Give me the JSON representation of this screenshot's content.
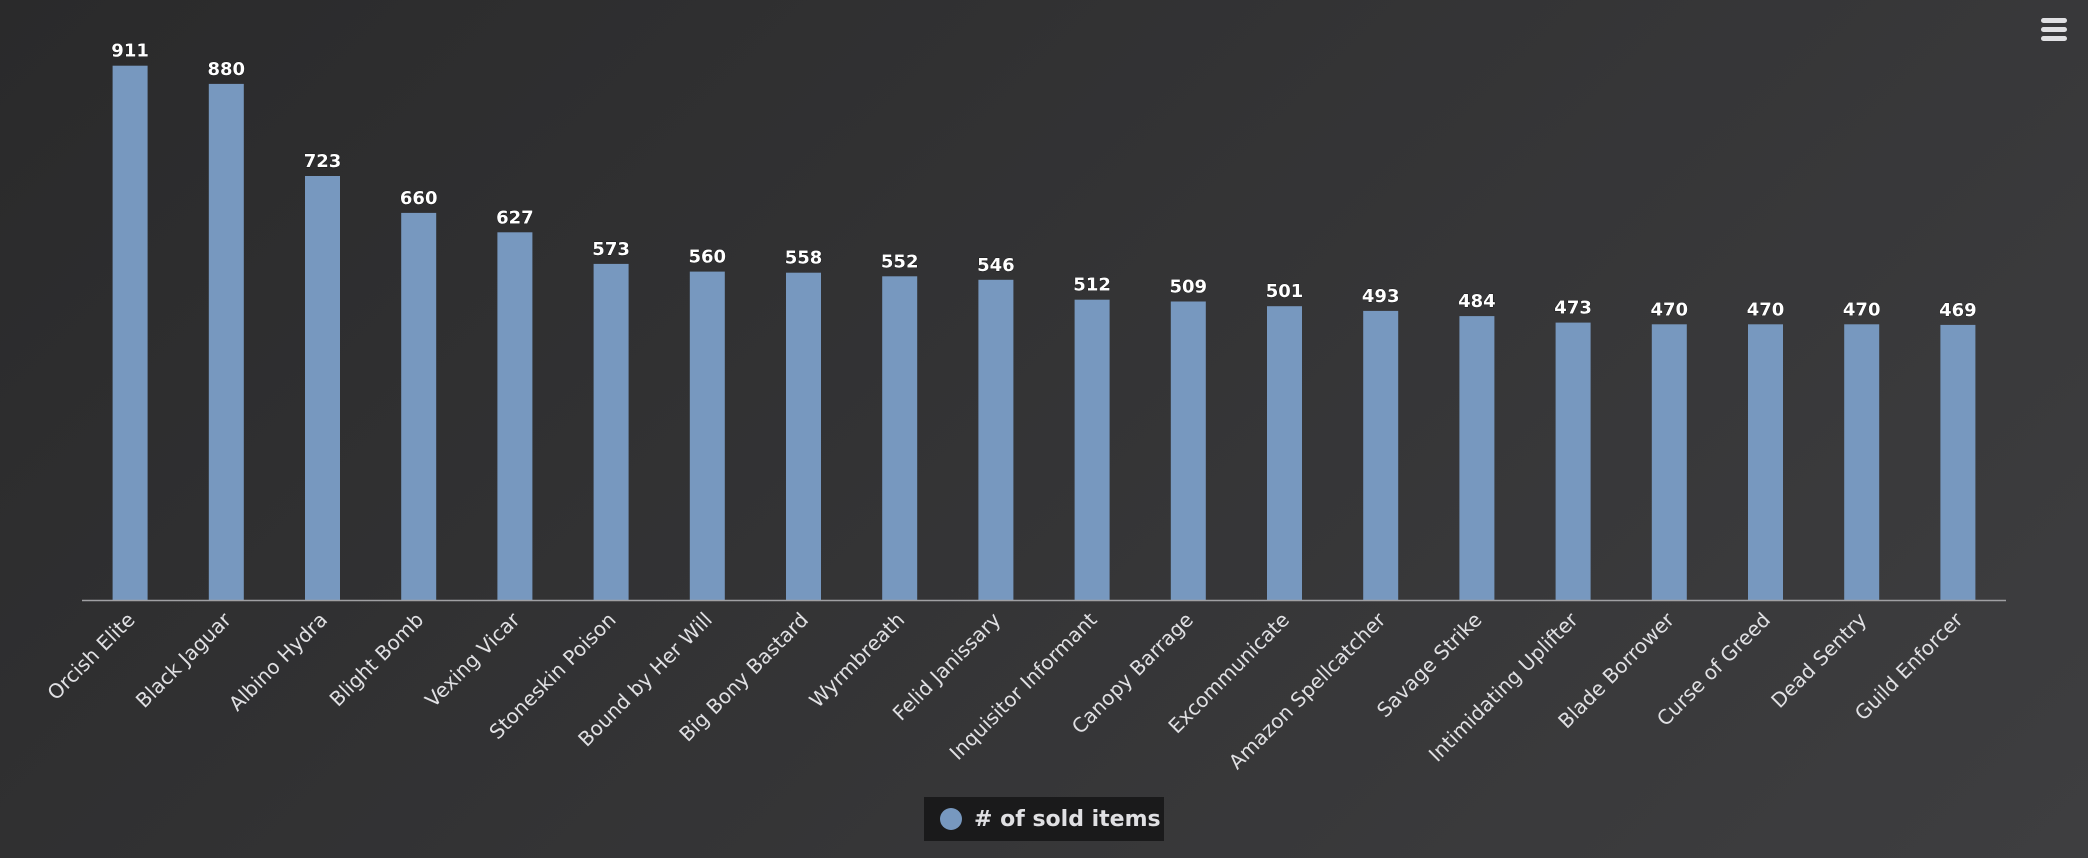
{
  "chart_data": {
    "type": "bar",
    "title": "",
    "xlabel": "",
    "ylabel": "",
    "ylim": [
      0,
      1000
    ],
    "grid": false,
    "legend_position": "bottom-center",
    "categories": [
      "Orcish Elite",
      "Black Jaguar",
      "Albino Hydra",
      "Blight Bomb",
      "Vexing Vicar",
      "Stoneskin Poison",
      "Bound by Her Will",
      "Big Bony Bastard",
      "Wyrmbreath",
      "Felid Janissary",
      "Inquisitor Informant",
      "Canopy Barrage",
      "Excommunicate",
      "Amazon Spellcatcher",
      "Savage Strike",
      "Intimidating Uplifter",
      "Blade Borrower",
      "Curse of Greed",
      "Dead Sentry",
      "Guild Enforcer"
    ],
    "series": [
      {
        "name": "# of sold items",
        "color": "#7798bf",
        "values": [
          911,
          880,
          723,
          660,
          627,
          573,
          560,
          558,
          552,
          546,
          512,
          509,
          501,
          493,
          484,
          473,
          470,
          470,
          470,
          469
        ]
      }
    ]
  },
  "colors": {
    "axis_line": "#a0a0a3",
    "label_text": "#e0e0e3",
    "data_label": "#ffffff"
  },
  "menu": {
    "icon": "hamburger-menu-icon"
  }
}
